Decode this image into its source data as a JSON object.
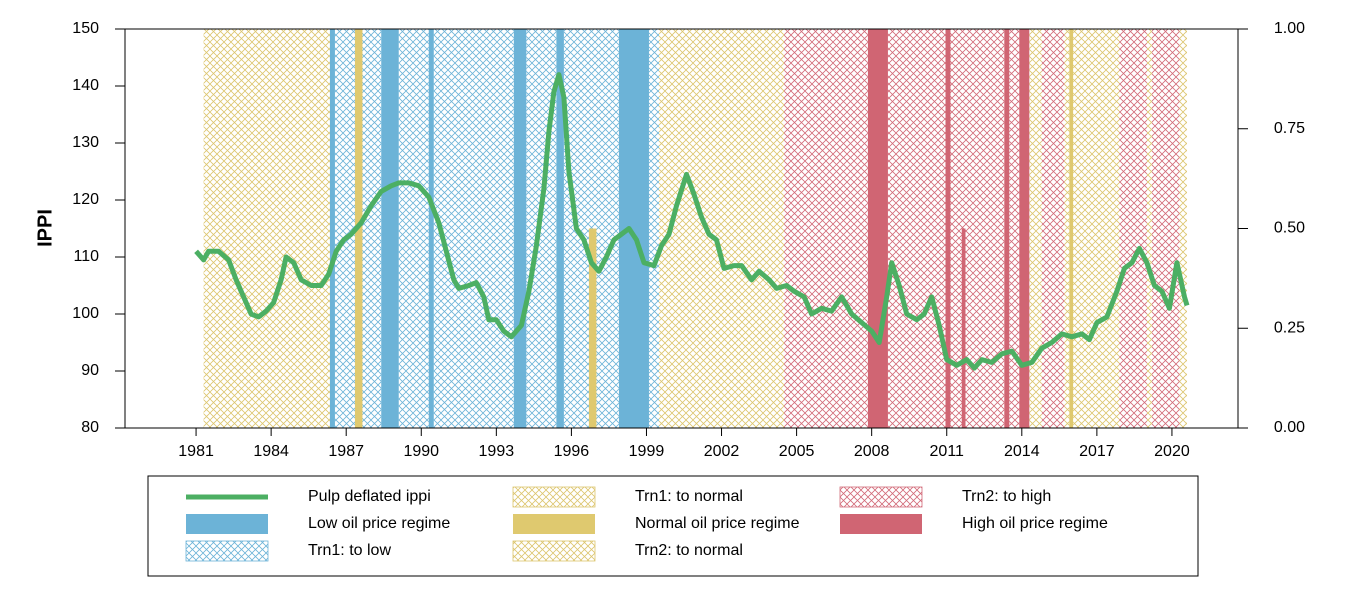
{
  "chart_data": {
    "type": "line",
    "y_label": "IPPI",
    "xlim": [
      1978.16,
      2022.64
    ],
    "xticks": [
      1981,
      1984,
      1987,
      1990,
      1993,
      1996,
      1999,
      2002,
      2005,
      2008,
      2011,
      2014,
      2017,
      2020
    ],
    "ylim": [
      80,
      150
    ],
    "yticks": [
      80,
      90,
      100,
      110,
      120,
      130,
      140,
      150
    ],
    "y2lim": [
      0,
      1
    ],
    "y2ticks": [
      {
        "value": 0,
        "label": "0.00"
      },
      {
        "value": 0.25,
        "label": "0.25"
      },
      {
        "value": 0.5,
        "label": "0.50"
      },
      {
        "value": 0.75,
        "label": "0.75"
      },
      {
        "value": 1,
        "label": "1.00"
      }
    ],
    "series": [
      {
        "name": "Pulp deflated ippi",
        "kind": "line",
        "color": "#4caf63",
        "x": [
          1981.0,
          1981.3,
          1981.5,
          1981.9,
          1982.3,
          1982.6,
          1982.9,
          1983.2,
          1983.5,
          1983.8,
          1984.1,
          1984.4,
          1984.6,
          1984.9,
          1985.2,
          1985.6,
          1986.0,
          1986.3,
          1986.6,
          1986.9,
          1987.2,
          1987.6,
          1988.0,
          1988.4,
          1988.8,
          1989.1,
          1989.5,
          1989.9,
          1990.3,
          1990.7,
          1991.0,
          1991.3,
          1991.5,
          1991.9,
          1992.2,
          1992.5,
          1992.7,
          1993.0,
          1993.3,
          1993.6,
          1994.0,
          1994.3,
          1994.6,
          1994.9,
          1995.1,
          1995.3,
          1995.5,
          1995.7,
          1995.9,
          1996.2,
          1996.5,
          1996.8,
          1997.1,
          1997.4,
          1997.7,
          1998.0,
          1998.3,
          1998.6,
          1998.9,
          1999.3,
          1999.6,
          1999.9,
          2000.2,
          2000.6,
          2000.9,
          2001.2,
          2001.5,
          2001.8,
          2002.1,
          2002.5,
          2002.8,
          2003.2,
          2003.5,
          2003.9,
          2004.2,
          2004.6,
          2004.9,
          2005.3,
          2005.6,
          2006.0,
          2006.4,
          2006.8,
          2007.2,
          2007.6,
          2008.0,
          2008.3,
          2008.6,
          2008.8,
          2009.1,
          2009.4,
          2009.8,
          2010.1,
          2010.4,
          2010.7,
          2011.0,
          2011.4,
          2011.8,
          2012.1,
          2012.4,
          2012.8,
          2013.2,
          2013.6,
          2014.0,
          2014.4,
          2014.8,
          2015.2,
          2015.6,
          2016.0,
          2016.4,
          2016.7,
          2017.0,
          2017.4,
          2017.8,
          2018.1,
          2018.4,
          2018.7,
          2019.0,
          2019.3,
          2019.6,
          2019.9,
          2020.2,
          2020.5,
          2020.6
        ],
        "values": [
          111,
          109.5,
          111,
          111,
          109.5,
          106,
          103,
          100,
          99.5,
          100.5,
          102,
          106,
          110,
          109,
          106,
          105,
          105,
          107,
          111,
          113,
          114,
          116,
          119,
          121.5,
          122.5,
          123,
          123,
          122.5,
          120.5,
          116,
          111,
          106,
          104.5,
          105,
          105.5,
          103,
          99,
          99,
          97,
          96,
          98,
          104,
          112,
          122,
          132,
          139,
          142,
          138,
          125,
          115,
          113,
          109,
          107.5,
          110,
          113,
          114,
          115,
          113,
          109,
          108.5,
          112,
          114,
          119,
          124.5,
          121,
          117,
          114,
          113,
          108,
          108.5,
          108.5,
          106,
          107.5,
          106,
          104.5,
          105,
          104,
          103,
          100,
          101,
          100.5,
          103,
          100,
          98.5,
          97,
          95,
          103,
          109,
          105,
          100,
          99,
          100,
          103,
          98,
          92,
          91,
          92,
          90.5,
          92,
          91.5,
          93,
          93.5,
          91,
          91.5,
          94,
          95,
          96.5,
          96,
          96.5,
          95.5,
          98.5,
          99.5,
          104,
          108,
          109,
          111.5,
          109,
          105,
          104,
          101,
          109,
          103,
          101.5
        ]
      },
      {
        "name": "Low oil price regime",
        "kind": "band",
        "pattern": "solid",
        "axis": "y2",
        "color": "#6cb3d7",
        "x": [
          1986.35,
          1988.4,
          1990.3,
          1993.7,
          1995.4,
          1997.9
        ],
        "x_end": [
          1986.55,
          1989.1,
          1990.5,
          1994.2,
          1995.7,
          1999.1
        ],
        "values": [
          1,
          1,
          1,
          1,
          1,
          1
        ]
      },
      {
        "name": "Trn1: to low",
        "kind": "band",
        "pattern": "hatch",
        "axis": "y2",
        "color": "#6cb3d7",
        "x": [
          1986.55,
          1989.1,
          1990.5,
          1994.2,
          1995.7,
          1999.1
        ],
        "x_end": [
          1988.4,
          1990.3,
          1993.7,
          1995.4,
          1997.9,
          1999.5
        ],
        "values": [
          1,
          1,
          1,
          1,
          1,
          1
        ]
      },
      {
        "name": "Trn1: to normal",
        "kind": "band",
        "pattern": "hatch",
        "axis": "y2",
        "color": "#dcc56e",
        "x": [
          1981.3
        ],
        "x_end": [
          1986.35
        ],
        "values": [
          1
        ]
      },
      {
        "name": "Normal oil price regime",
        "kind": "band",
        "pattern": "solid",
        "axis": "y2",
        "color": "#dfc96f",
        "x": [
          1987.35,
          1996.7,
          2015.9
        ],
        "x_end": [
          1987.65,
          1997.0,
          2016.05
        ],
        "values": [
          1,
          0.5,
          1
        ]
      },
      {
        "name": "Trn2: to normal",
        "kind": "band",
        "pattern": "hatch",
        "axis": "y2",
        "color": "#dcc56e",
        "x": [
          1999.5,
          2014.3,
          2015.7,
          2016.05,
          2019.0,
          2020.3
        ],
        "x_end": [
          2004.5,
          2014.8,
          2015.9,
          2017.9,
          2019.2,
          2020.6
        ],
        "values": [
          1,
          1,
          1,
          1,
          1,
          1
        ]
      },
      {
        "name": "Trn2: to high",
        "kind": "band",
        "pattern": "hatch",
        "axis": "y2",
        "color": "#d26a78",
        "x": [
          2004.5,
          2008.65,
          2013.5,
          2014.8,
          2017.9,
          2019.2
        ],
        "x_end": [
          2007.85,
          2013.3,
          2013.9,
          2015.7,
          2019.0,
          2020.3
        ],
        "values": [
          1,
          1,
          1,
          1,
          1,
          1
        ]
      },
      {
        "name": "High oil price regime",
        "kind": "band",
        "pattern": "solid",
        "axis": "y2",
        "color": "#d06573",
        "x": [
          2007.85,
          2010.95,
          2011.6,
          2013.3,
          2013.9
        ],
        "x_end": [
          2008.65,
          2011.15,
          2011.75,
          2013.5,
          2014.3
        ],
        "values": [
          1,
          1,
          0.5,
          1,
          1
        ]
      }
    ]
  }
}
